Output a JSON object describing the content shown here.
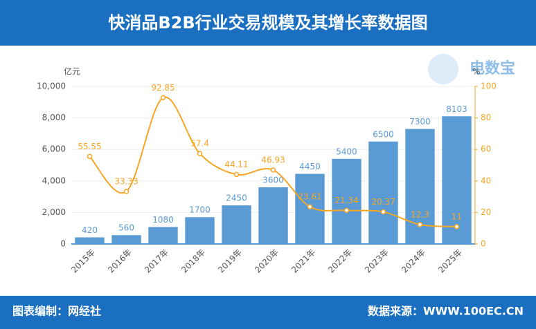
{
  "header": {
    "title": "快消品B2B行业交易规模及其增长率数据图"
  },
  "logo": {
    "name": "电数宝"
  },
  "footer": {
    "left": "图表编制：网经社",
    "right": "数据来源：WWW.100EC.CN"
  },
  "chart_data": {
    "type": "bar-line",
    "y_label": "亿元",
    "y2_label": "%",
    "categories": [
      "2015年",
      "2016年",
      "2017年",
      "2018年",
      "2019年",
      "2020年",
      "2021年",
      "2022年",
      "2023年",
      "2024年",
      "2025年"
    ],
    "series": [
      {
        "type": "bar",
        "color": "#5b9bd5",
        "values": [
          420,
          560,
          1080,
          1700,
          2450,
          3600,
          4450,
          5400,
          6500,
          7300,
          8103
        ]
      },
      {
        "type": "line",
        "axis": "y2",
        "color": "#f5a623",
        "values": [
          55.55,
          33.33,
          92.85,
          57.4,
          44.11,
          46.93,
          23.61,
          21.34,
          20.37,
          12.3,
          11
        ]
      }
    ],
    "ylim": [
      0,
      10000
    ],
    "yticks": [
      0,
      {
        "value": 2000,
        "label": "2,000"
      },
      {
        "value": 4000,
        "label": "4,000"
      },
      {
        "value": 6000,
        "label": "6,000"
      },
      {
        "value": 8000,
        "label": "8,000"
      },
      {
        "value": 10000,
        "label": "10,000"
      }
    ],
    "y2lim": [
      0,
      100
    ],
    "y2ticks": [
      0,
      20,
      40,
      60,
      80,
      100
    ],
    "grid": true
  }
}
